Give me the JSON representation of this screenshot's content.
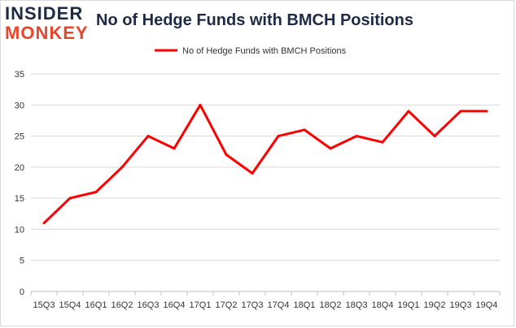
{
  "logo": {
    "line1": "INSIDER",
    "line2": "MONKEY"
  },
  "chart_data": {
    "type": "line",
    "title": "No of Hedge Funds with BMCH Positions",
    "categories": [
      "15Q3",
      "15Q4",
      "16Q1",
      "16Q2",
      "16Q3",
      "16Q4",
      "17Q1",
      "17Q2",
      "17Q3",
      "17Q4",
      "18Q1",
      "18Q2",
      "18Q3",
      "18Q4",
      "19Q1",
      "19Q2",
      "19Q3",
      "19Q4"
    ],
    "series": [
      {
        "name": "No of Hedge Funds with BMCH Positions",
        "values": [
          11,
          15,
          16,
          20,
          25,
          23,
          30,
          22,
          19,
          25,
          26,
          23,
          25,
          24,
          29,
          25,
          29,
          29
        ],
        "color": "#ff0000"
      }
    ],
    "ylim": [
      0,
      35
    ],
    "yticks": [
      0,
      5,
      10,
      15,
      20,
      25,
      30,
      35
    ],
    "grid": "horizontal",
    "legend": "top-center"
  }
}
